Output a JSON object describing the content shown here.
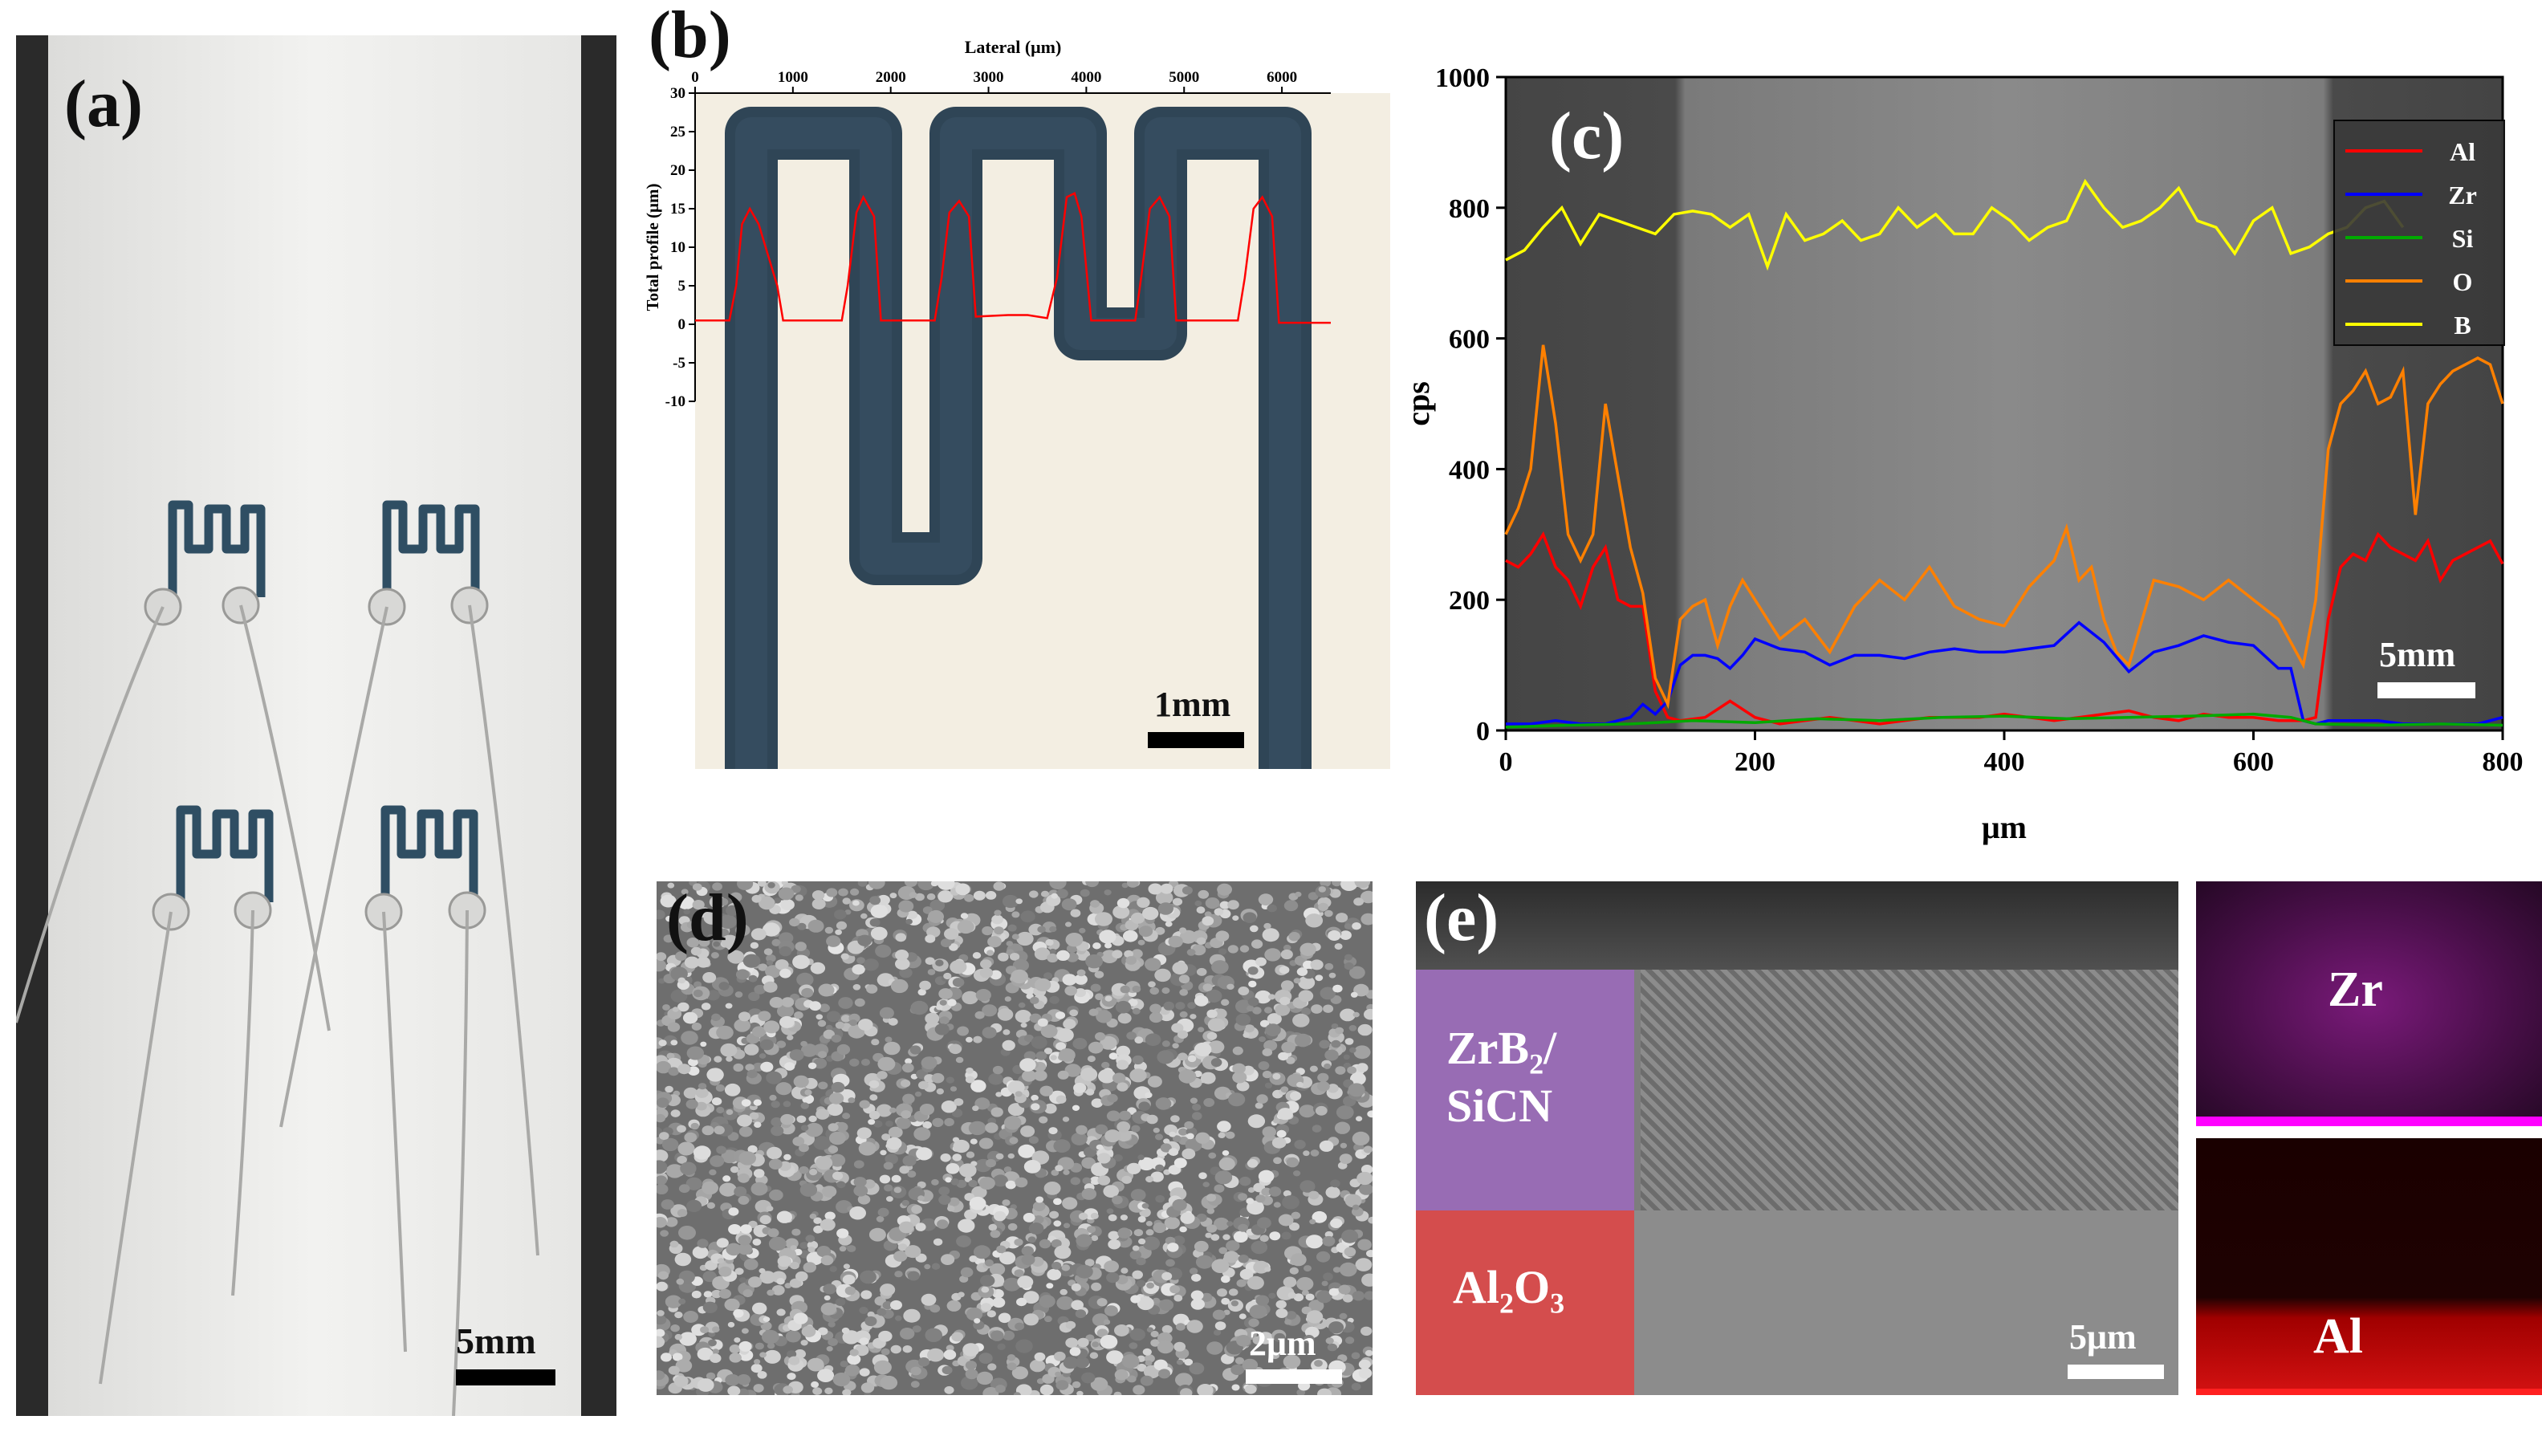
{
  "panels": {
    "a": {
      "label": "(a)",
      "scale_bar": "5mm"
    },
    "b": {
      "label": "(b)",
      "scale_bar": "1mm"
    },
    "c": {
      "label": "(c)",
      "scale_bar": "5mm"
    },
    "d": {
      "label": "(d)",
      "scale_bar": "2μm"
    },
    "e": {
      "label": "(e)",
      "scale_bar": "5μm",
      "layer_top": "ZrB",
      "layer_top_sub": "2",
      "layer_top_slash": "/",
      "layer_top_line2": "SiCN",
      "layer_bottom_a": "Al",
      "layer_bottom_sub1": "2",
      "layer_bottom_b": "O",
      "layer_bottom_sub2": "3",
      "map_zr": "Zr",
      "map_al": "Al"
    }
  },
  "chart_data": [
    {
      "panel": "b",
      "type": "line",
      "xlabel": "Lateral (μm)",
      "ylabel": "Total profile (μm)",
      "xlim": [
        0,
        6500
      ],
      "ylim": [
        -10,
        30
      ],
      "xticks": [
        0,
        1000,
        2000,
        3000,
        4000,
        5000,
        6000
      ],
      "yticks": [
        -10,
        -5,
        0,
        5,
        10,
        15,
        20,
        25,
        30
      ],
      "series": [
        {
          "color": "#ff0000",
          "x": [
            0,
            350,
            420,
            480,
            560,
            650,
            840,
            900,
            1500,
            1560,
            1650,
            1720,
            1830,
            1900,
            2450,
            2520,
            2600,
            2700,
            2800,
            2870,
            3200,
            3400,
            3600,
            3700,
            3800,
            3880,
            3950,
            4050,
            4500,
            4560,
            4650,
            4750,
            4850,
            4920,
            5550,
            5620,
            5710,
            5800,
            5900,
            5970,
            6500
          ],
          "y": [
            0.5,
            0.5,
            5,
            13,
            15,
            13,
            5,
            0.5,
            0.5,
            5,
            14.5,
            16.5,
            14,
            0.5,
            0.5,
            6,
            14.5,
            16,
            14,
            1,
            1.2,
            1.2,
            0.8,
            6,
            16.5,
            17,
            14,
            0.5,
            0.5,
            6,
            15,
            16.5,
            14,
            0.5,
            0.5,
            6,
            15,
            16.5,
            14,
            0.2,
            0.2
          ]
        }
      ]
    },
    {
      "panel": "c",
      "type": "line",
      "xlabel": "μm",
      "ylabel": "cps",
      "xlim": [
        0,
        800
      ],
      "ylim": [
        0,
        1000
      ],
      "xticks": [
        0,
        200,
        400,
        600,
        800
      ],
      "yticks": [
        0,
        200,
        400,
        600,
        800,
        1000
      ],
      "legend": "top-right",
      "series": [
        {
          "name": "Al",
          "color": "#ff0000",
          "x": [
            0,
            10,
            20,
            30,
            40,
            50,
            60,
            70,
            80,
            90,
            100,
            110,
            120,
            130,
            140,
            160,
            180,
            200,
            220,
            240,
            260,
            280,
            300,
            320,
            340,
            360,
            380,
            400,
            420,
            440,
            460,
            480,
            500,
            520,
            540,
            560,
            580,
            600,
            620,
            640,
            650,
            660,
            670,
            680,
            690,
            700,
            710,
            720,
            730,
            740,
            750,
            760,
            770,
            780,
            790,
            800
          ],
          "y": [
            260,
            250,
            270,
            300,
            250,
            230,
            190,
            250,
            280,
            200,
            190,
            190,
            60,
            20,
            15,
            20,
            45,
            20,
            10,
            15,
            20,
            15,
            10,
            15,
            20,
            20,
            20,
            25,
            20,
            15,
            20,
            25,
            30,
            20,
            15,
            25,
            20,
            20,
            15,
            15,
            20,
            170,
            250,
            270,
            260,
            300,
            280,
            270,
            260,
            290,
            230,
            260,
            270,
            280,
            290,
            255
          ]
        },
        {
          "name": "Zr",
          "color": "#0000ff",
          "x": [
            0,
            20,
            40,
            60,
            80,
            100,
            110,
            120,
            130,
            140,
            150,
            160,
            170,
            180,
            190,
            200,
            220,
            240,
            260,
            280,
            300,
            320,
            340,
            360,
            380,
            400,
            420,
            440,
            460,
            470,
            480,
            500,
            520,
            540,
            560,
            580,
            600,
            620,
            630,
            640,
            650,
            660,
            680,
            700,
            720,
            740,
            760,
            780,
            800
          ],
          "y": [
            10,
            10,
            15,
            10,
            10,
            20,
            40,
            25,
            45,
            100,
            115,
            115,
            110,
            95,
            115,
            140,
            125,
            120,
            100,
            115,
            115,
            110,
            120,
            125,
            120,
            120,
            125,
            130,
            165,
            150,
            135,
            90,
            120,
            130,
            145,
            135,
            130,
            95,
            95,
            15,
            10,
            15,
            15,
            15,
            10,
            10,
            10,
            10,
            20
          ]
        },
        {
          "name": "Si",
          "color": "#00aa00",
          "x": [
            0,
            50,
            100,
            150,
            200,
            250,
            300,
            350,
            400,
            450,
            500,
            550,
            600,
            630,
            650,
            700,
            750,
            800
          ],
          "y": [
            5,
            8,
            10,
            15,
            12,
            18,
            15,
            20,
            22,
            18,
            20,
            22,
            25,
            20,
            10,
            8,
            10,
            8
          ]
        },
        {
          "name": "O",
          "color": "#ff8000",
          "x": [
            0,
            10,
            20,
            30,
            40,
            50,
            60,
            70,
            80,
            90,
            100,
            110,
            120,
            130,
            140,
            150,
            160,
            170,
            180,
            190,
            200,
            220,
            240,
            260,
            280,
            300,
            320,
            340,
            360,
            380,
            400,
            420,
            440,
            450,
            460,
            470,
            480,
            490,
            500,
            520,
            540,
            560,
            580,
            600,
            620,
            640,
            650,
            660,
            670,
            680,
            690,
            700,
            710,
            720,
            730,
            740,
            750,
            760,
            770,
            780,
            790,
            800
          ],
          "y": [
            300,
            340,
            400,
            590,
            470,
            300,
            260,
            300,
            500,
            390,
            280,
            210,
            80,
            40,
            170,
            190,
            200,
            130,
            190,
            230,
            200,
            140,
            170,
            120,
            190,
            230,
            200,
            250,
            190,
            170,
            160,
            220,
            260,
            310,
            230,
            250,
            170,
            120,
            100,
            230,
            220,
            200,
            230,
            200,
            170,
            100,
            200,
            430,
            500,
            520,
            550,
            500,
            510,
            550,
            330,
            500,
            530,
            550,
            560,
            570,
            560,
            500
          ]
        },
        {
          "name": "B",
          "color": "#ffff00",
          "x": [
            0,
            15,
            30,
            45,
            60,
            75,
            90,
            105,
            120,
            135,
            150,
            165,
            180,
            195,
            210,
            225,
            240,
            255,
            270,
            285,
            300,
            315,
            330,
            345,
            360,
            375,
            390,
            405,
            420,
            435,
            450,
            465,
            480,
            495,
            510,
            525,
            540,
            555,
            570,
            585,
            600,
            615,
            630,
            645,
            660,
            675,
            690,
            705,
            720
          ],
          "y": [
            720,
            735,
            770,
            800,
            745,
            790,
            780,
            770,
            760,
            790,
            795,
            790,
            770,
            790,
            710,
            790,
            750,
            760,
            780,
            750,
            760,
            800,
            770,
            790,
            760,
            760,
            800,
            780,
            750,
            770,
            780,
            840,
            800,
            770,
            780,
            800,
            830,
            780,
            770,
            730,
            780,
            800,
            730,
            740,
            760,
            770,
            800,
            810,
            770
          ]
        }
      ]
    }
  ]
}
